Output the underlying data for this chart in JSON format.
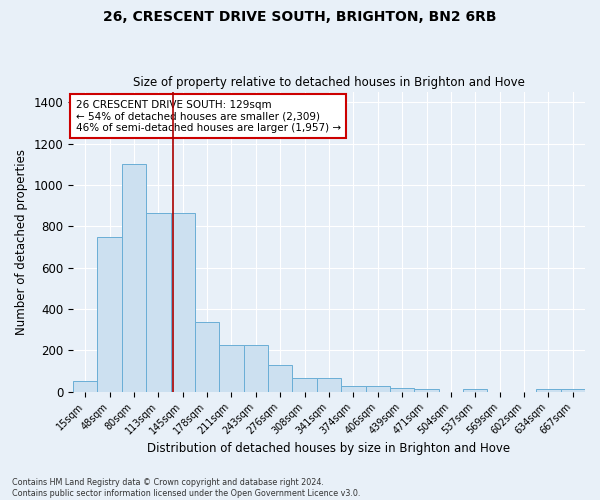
{
  "title1": "26, CRESCENT DRIVE SOUTH, BRIGHTON, BN2 6RB",
  "title2": "Size of property relative to detached houses in Brighton and Hove",
  "xlabel": "Distribution of detached houses by size in Brighton and Hove",
  "ylabel": "Number of detached properties",
  "footer1": "Contains HM Land Registry data © Crown copyright and database right 2024.",
  "footer2": "Contains public sector information licensed under the Open Government Licence v3.0.",
  "annotation_line1": "26 CRESCENT DRIVE SOUTH: 129sqm",
  "annotation_line2": "← 54% of detached houses are smaller (2,309)",
  "annotation_line3": "46% of semi-detached houses are larger (1,957) →",
  "bar_labels": [
    "15sqm",
    "48sqm",
    "80sqm",
    "113sqm",
    "145sqm",
    "178sqm",
    "211sqm",
    "243sqm",
    "276sqm",
    "308sqm",
    "341sqm",
    "374sqm",
    "406sqm",
    "439sqm",
    "471sqm",
    "504sqm",
    "537sqm",
    "569sqm",
    "602sqm",
    "634sqm",
    "667sqm"
  ],
  "bar_heights": [
    50,
    750,
    1100,
    865,
    865,
    340,
    228,
    228,
    130,
    65,
    65,
    27,
    27,
    20,
    15,
    0,
    12,
    0,
    0,
    12,
    12
  ],
  "bar_color": "#cce0f0",
  "bar_edge_color": "#6aaed6",
  "vline_x": 3.62,
  "vline_color": "#aa0000",
  "annotation_box_color": "#ffffff",
  "annotation_box_edge": "#cc0000",
  "background_color": "#e8f0f8",
  "grid_color": "#ffffff",
  "ylim": [
    0,
    1450
  ],
  "figsize": [
    6.0,
    5.0
  ],
  "dpi": 100
}
